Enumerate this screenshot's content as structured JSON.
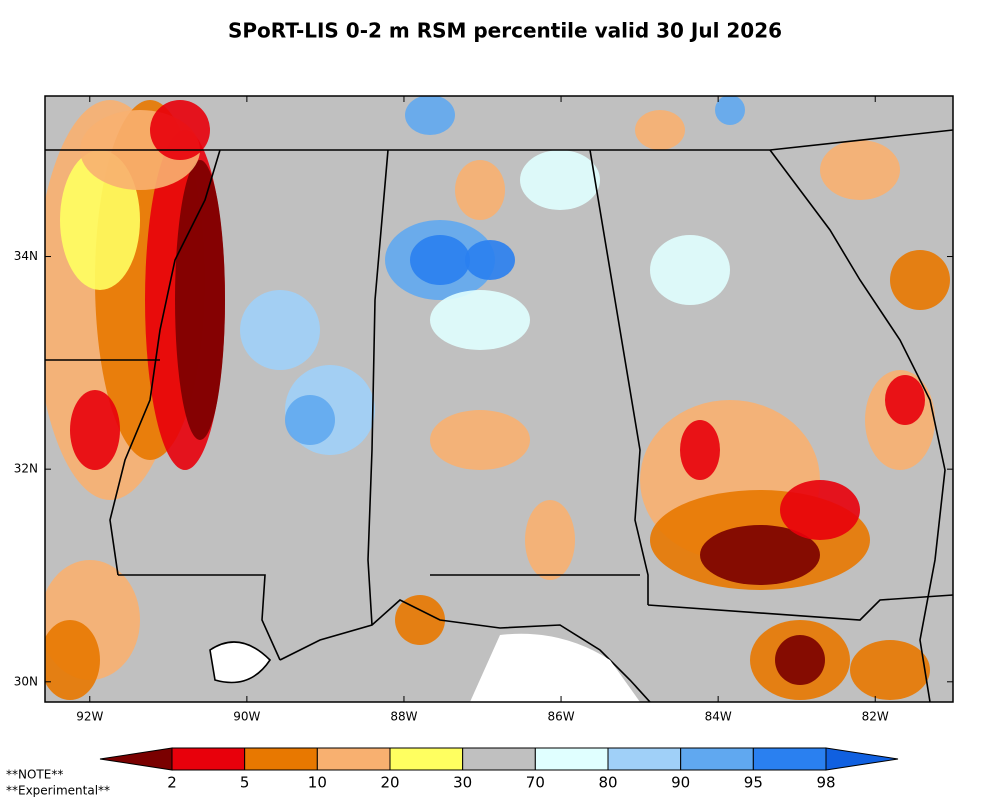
{
  "title": "SPoRT-LIS 0-2 m RSM percentile valid 30 Jul 2026",
  "map": {
    "xlim": [
      -92.57,
      -81.01
    ],
    "ylim": [
      29.81,
      35.51
    ],
    "xticks": [
      {
        "value": -92,
        "label": "92W"
      },
      {
        "value": -90,
        "label": "90W"
      },
      {
        "value": -88,
        "label": "88W"
      },
      {
        "value": -86,
        "label": "86W"
      },
      {
        "value": -84,
        "label": "84W"
      },
      {
        "value": -82,
        "label": "82W"
      }
    ],
    "yticks": [
      {
        "value": 30,
        "label": "30N"
      },
      {
        "value": 32,
        "label": "32N"
      },
      {
        "value": 34,
        "label": "34N"
      }
    ]
  },
  "colorbar": {
    "levels": [
      2,
      5,
      10,
      20,
      30,
      70,
      80,
      90,
      95,
      98
    ],
    "colors": [
      "#7a0000",
      "#e8000b",
      "#e87800",
      "#f8b070",
      "#ffff60",
      "#c0c0c0",
      "#e0ffff",
      "#a0d0f8",
      "#60a8f0",
      "#2a80f0",
      "#1060e0"
    ]
  },
  "notes": [
    "**NOTE**",
    "**Experimental**"
  ]
}
